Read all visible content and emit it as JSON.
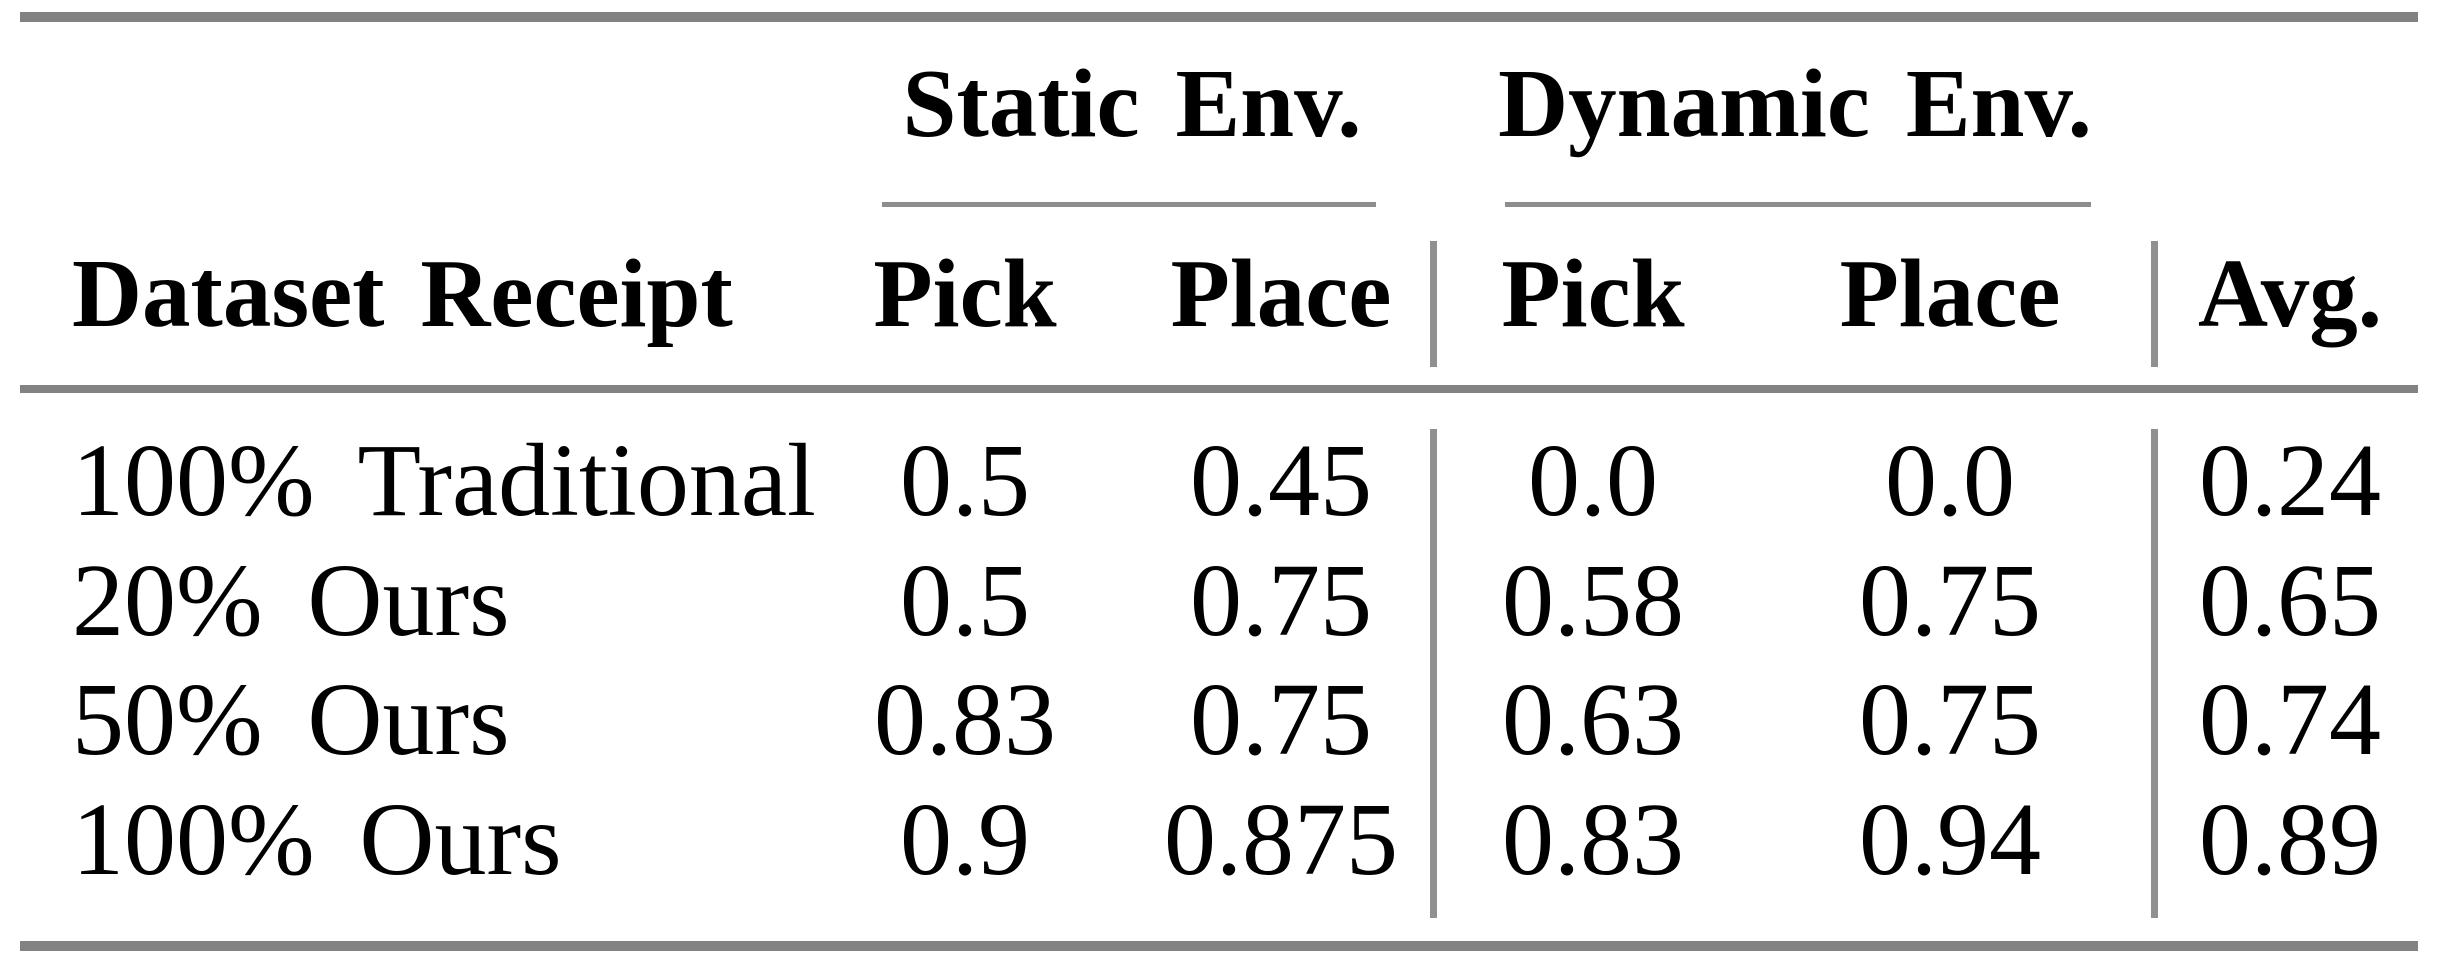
{
  "table": {
    "group_headers": {
      "static": "Static Env.",
      "dynamic": "Dynamic Env."
    },
    "row_header": "Dataset Receipt",
    "col_headers": {
      "static_pick": "Pick",
      "static_place": "Place",
      "dynamic_pick": "Pick",
      "dynamic_place": "Place",
      "avg": "Avg."
    },
    "rows": [
      {
        "label": "100% Traditional",
        "values": [
          "0.5",
          "0.45",
          "0.0",
          "0.0",
          "0.24"
        ]
      },
      {
        "label": "20% Ours",
        "values": [
          "0.5",
          "0.75",
          "0.58",
          "0.75",
          "0.65"
        ]
      },
      {
        "label": "50% Ours",
        "values": [
          "0.83",
          "0.75",
          "0.63",
          "0.75",
          "0.74"
        ]
      },
      {
        "label": "100% Ours",
        "values": [
          "0.9",
          "0.875",
          "0.83",
          "0.94",
          "0.89"
        ]
      }
    ],
    "colors": {
      "rule_thick": "#828282",
      "rule_thin": "#8d8d8d",
      "text": "#000000",
      "background": "#ffffff"
    }
  },
  "chart_data": {
    "type": "table",
    "column_groups": [
      {
        "label": "Static Env.",
        "columns": [
          "Pick",
          "Place"
        ]
      },
      {
        "label": "Dynamic Env.",
        "columns": [
          "Pick",
          "Place"
        ]
      }
    ],
    "columns": [
      "Dataset Receipt",
      "Static Pick",
      "Static Place",
      "Dynamic Pick",
      "Dynamic Place",
      "Avg."
    ],
    "rows": [
      [
        "100% Traditional",
        0.5,
        0.45,
        0.0,
        0.0,
        0.24
      ],
      [
        "20% Ours",
        0.5,
        0.75,
        0.58,
        0.75,
        0.65
      ],
      [
        "50% Ours",
        0.83,
        0.75,
        0.63,
        0.75,
        0.74
      ],
      [
        "100% Ours",
        0.9,
        0.875,
        0.83,
        0.94,
        0.89
      ]
    ]
  }
}
